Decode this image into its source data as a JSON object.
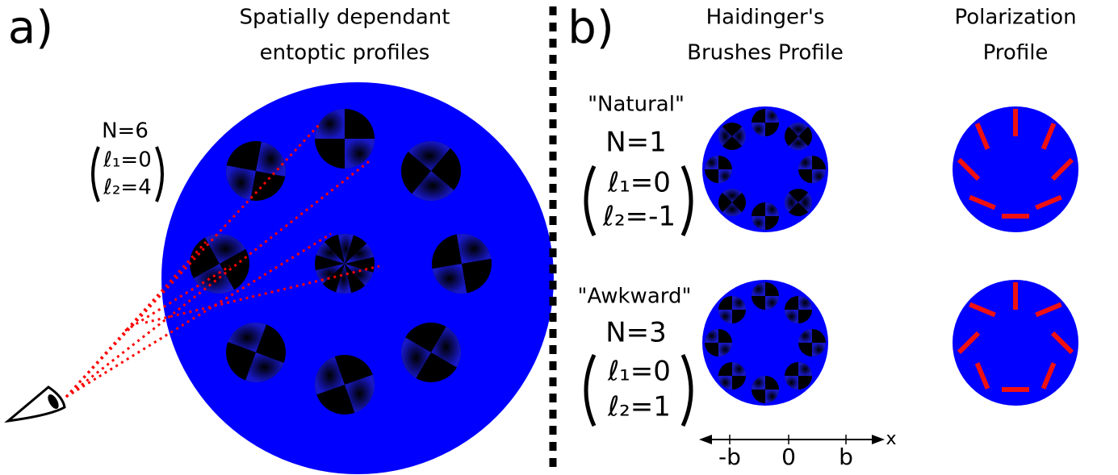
{
  "panel_a": {
    "label": "a)",
    "title_lines": [
      "Spatially dependant",
      "entoptic profiles"
    ],
    "params": {
      "n": "N=6",
      "l1": "ℓ₁=0",
      "l2": "ℓ₂=4"
    }
  },
  "panel_b": {
    "label": "b)",
    "columns": [
      [
        "Haidinger's",
        "Brushes Profile"
      ],
      [
        "Polarization",
        "Profile"
      ]
    ],
    "rows": [
      {
        "name": "\"Natural\"",
        "n": "N=1",
        "l1": "ℓ₁=0",
        "l2": "ℓ₂=-1"
      },
      {
        "name": "\"Awkward\"",
        "n": "N=3",
        "l1": "ℓ₁=0",
        "l2": "ℓ₂=1"
      }
    ],
    "axis": {
      "ticks": [
        "-b",
        "0",
        "b"
      ],
      "label": "x"
    }
  }
}
